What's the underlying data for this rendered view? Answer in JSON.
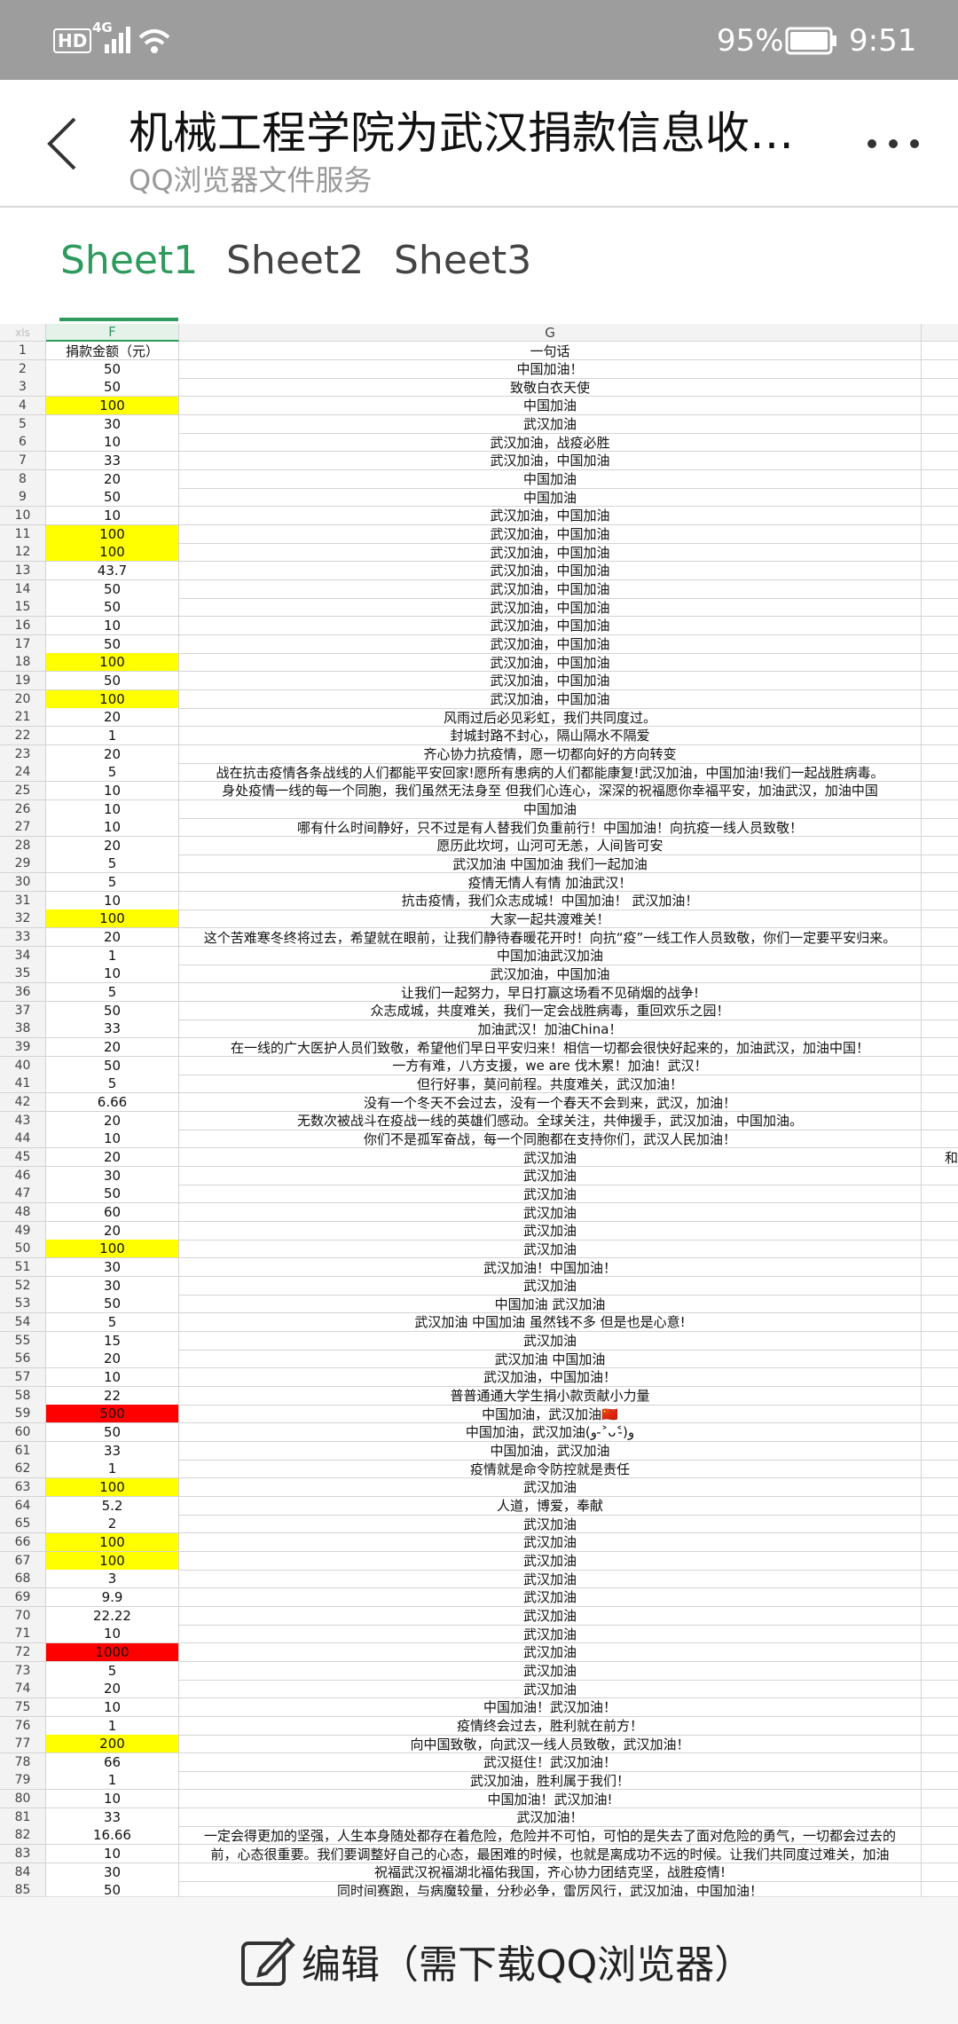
{
  "status_bar": {
    "hd": "HD",
    "network": "4G",
    "battery": "95%",
    "time": "9:51"
  },
  "header": {
    "title": "机械工程学院为武汉捐款信息收…",
    "subtitle": "QQ浏览器文件服务"
  },
  "tabs": [
    "Sheet1",
    "Sheet2",
    "Sheet3"
  ],
  "sheet": {
    "corner": "xls",
    "columns": [
      "F",
      "G"
    ],
    "rows": [
      {
        "n": 1,
        "f": "捐款金额（元）",
        "g": "一句话"
      },
      {
        "n": 2,
        "f": 50,
        "g": "中国加油！"
      },
      {
        "n": 3,
        "f": 50,
        "g": "致敬白衣天使"
      },
      {
        "n": 4,
        "f": 100,
        "g": "中国加油",
        "fill": "#ffff00"
      },
      {
        "n": 5,
        "f": 30,
        "g": "武汉加油"
      },
      {
        "n": 6,
        "f": 10,
        "g": "武汉加油，战疫必胜"
      },
      {
        "n": 7,
        "f": 33,
        "g": "武汉加油，中国加油"
      },
      {
        "n": 8,
        "f": 20,
        "g": "中国加油"
      },
      {
        "n": 9,
        "f": 50,
        "g": "中国加油"
      },
      {
        "n": 10,
        "f": 10,
        "g": "武汉加油，中国加油"
      },
      {
        "n": 11,
        "f": 100,
        "g": "武汉加油，中国加油",
        "fill": "#ffff00"
      },
      {
        "n": 12,
        "f": 100,
        "g": "武汉加油，中国加油",
        "fill": "#ffff00"
      },
      {
        "n": 13,
        "f": 43.7,
        "g": "武汉加油，中国加油"
      },
      {
        "n": 14,
        "f": 50,
        "g": "武汉加油，中国加油"
      },
      {
        "n": 15,
        "f": 50,
        "g": "武汉加油，中国加油"
      },
      {
        "n": 16,
        "f": 10,
        "g": "武汉加油，中国加油"
      },
      {
        "n": 17,
        "f": 50,
        "g": "武汉加油，中国加油"
      },
      {
        "n": 18,
        "f": 100,
        "g": "武汉加油，中国加油",
        "fill": "#ffff00"
      },
      {
        "n": 19,
        "f": 50,
        "g": "武汉加油，中国加油"
      },
      {
        "n": 20,
        "f": 100,
        "g": "武汉加油，中国加油",
        "fill": "#ffff00"
      },
      {
        "n": 21,
        "f": 20,
        "g": "风雨过后必见彩虹，我们共同度过。"
      },
      {
        "n": 22,
        "f": 1,
        "g": "封城封路不封心，隔山隔水不隔爱"
      },
      {
        "n": 23,
        "f": 20,
        "g": "齐心协力抗疫情，愿一切都向好的方向转变"
      },
      {
        "n": 24,
        "f": 5,
        "g": "战在抗击疫情各条战线的人们都能平安回家!愿所有患病的人们都能康复!武汉加油，中国加油!我们一起战胜病毒。"
      },
      {
        "n": 25,
        "f": 10,
        "g": "身处疫情一线的每一个同胞，我们虽然无法身至 但我们心连心，深深的祝福愿你幸福平安，加油武汉，加油中国"
      },
      {
        "n": 26,
        "f": 10,
        "g": "中国加油"
      },
      {
        "n": 27,
        "f": 10,
        "g": "哪有什么时间静好，只不过是有人替我们负重前行！中国加油！向抗疫一线人员致敬！"
      },
      {
        "n": 28,
        "f": 20,
        "g": "愿历此坎坷，山河可无恙，人间皆可安"
      },
      {
        "n": 29,
        "f": 5,
        "g": "武汉加油 中国加油 我们一起加油"
      },
      {
        "n": 30,
        "f": 5,
        "g": "疫情无情人有情 加油武汉！"
      },
      {
        "n": 31,
        "f": 10,
        "g": "抗击疫情，我们众志成城！中国加油！ 武汉加油！"
      },
      {
        "n": 32,
        "f": 100,
        "g": "大家一起共渡难关！",
        "fill": "#ffff00"
      },
      {
        "n": 33,
        "f": 20,
        "g": "这个苦难寒冬终将过去，希望就在眼前，让我们静待春暖花开时！向抗“疫”一线工作人员致敬，你们一定要平安归来。"
      },
      {
        "n": 34,
        "f": 1,
        "g": "中国加油武汉加油"
      },
      {
        "n": 35,
        "f": 10,
        "g": "武汉加油，中国加油"
      },
      {
        "n": 36,
        "f": 5,
        "g": "让我们一起努力，早日打赢这场看不见硝烟的战争!"
      },
      {
        "n": 37,
        "f": 50,
        "g": "众志成城，共度难关，我们一定会战胜病毒，重回欢乐之园！"
      },
      {
        "n": 38,
        "f": 33,
        "g": "加油武汉！加油China！"
      },
      {
        "n": 39,
        "f": 20,
        "g": "在一线的广大医护人员们致敬，希望他们早日平安归来！相信一切都会很快好起来的，加油武汉，加油中国！"
      },
      {
        "n": 40,
        "f": 50,
        "g": "一方有难，八方支援，we are 伐木累！加油！武汉！"
      },
      {
        "n": 41,
        "f": 5,
        "g": "但行好事，莫问前程。共度难关，武汉加油！"
      },
      {
        "n": 42,
        "f": 6.66,
        "g": "没有一个冬天不会过去，没有一个春天不会到来，武汉，加油！"
      },
      {
        "n": 43,
        "f": 20,
        "g": "无数次被战斗在疫战一线的英雄们感动。全球关注，共伸援手，武汉加油，中国加油。"
      },
      {
        "n": 44,
        "f": 10,
        "g": "你们不是孤军奋战，每一个同胞都在支持你们，武汉人民加油！"
      },
      {
        "n": 45,
        "f": 20,
        "g": "武汉加油",
        "h": "和"
      },
      {
        "n": 46,
        "f": 30,
        "g": "武汉加油"
      },
      {
        "n": 47,
        "f": 50,
        "g": "武汉加油"
      },
      {
        "n": 48,
        "f": 60,
        "g": "武汉加油"
      },
      {
        "n": 49,
        "f": 20,
        "g": "武汉加油"
      },
      {
        "n": 50,
        "f": 100,
        "g": "武汉加油",
        "fill": "#ffff00"
      },
      {
        "n": 51,
        "f": 30,
        "g": "武汉加油！中国加油！"
      },
      {
        "n": 52,
        "f": 30,
        "g": "武汉加油"
      },
      {
        "n": 53,
        "f": 50,
        "g": "中国加油 武汉加油"
      },
      {
        "n": 54,
        "f": 5,
        "g": "武汉加油 中国加油 虽然钱不多 但是也是心意!"
      },
      {
        "n": 55,
        "f": 15,
        "g": "武汉加油"
      },
      {
        "n": 56,
        "f": 20,
        "g": "武汉加油 中国加油"
      },
      {
        "n": 57,
        "f": 10,
        "g": "武汉加油，中国加油！"
      },
      {
        "n": 58,
        "f": 22,
        "g": "普普通通大学生捐小款贡献小力量"
      },
      {
        "n": 59,
        "f": 500,
        "g": "中国加油，武汉加油🇨🇳",
        "fill": "#ff0000"
      },
      {
        "n": 60,
        "f": 50,
        "g": "中国加油，武汉加油(و ˃̵ᴗ˂̵)و"
      },
      {
        "n": 61,
        "f": 33,
        "g": "中国加油，武汉加油"
      },
      {
        "n": 62,
        "f": 1,
        "g": "疫情就是命令防控就是责任"
      },
      {
        "n": 63,
        "f": 100,
        "g": "武汉加油",
        "fill": "#ffff00"
      },
      {
        "n": 64,
        "f": 5.2,
        "g": "人道，博爱，奉献"
      },
      {
        "n": 65,
        "f": 2,
        "g": "武汉加油"
      },
      {
        "n": 66,
        "f": 100,
        "g": "武汉加油",
        "fill": "#ffff00"
      },
      {
        "n": 67,
        "f": 100,
        "g": "武汉加油",
        "fill": "#ffff00"
      },
      {
        "n": 68,
        "f": 3,
        "g": "武汉加油"
      },
      {
        "n": 69,
        "f": 9.9,
        "g": "武汉加油"
      },
      {
        "n": 70,
        "f": 22.22,
        "g": "武汉加油"
      },
      {
        "n": 71,
        "f": 10,
        "g": "武汉加油"
      },
      {
        "n": 72,
        "f": 1000,
        "g": "武汉加油",
        "fill": "#ff0000"
      },
      {
        "n": 73,
        "f": 5,
        "g": "武汉加油"
      },
      {
        "n": 74,
        "f": 20,
        "g": "武汉加油"
      },
      {
        "n": 75,
        "f": 10,
        "g": "中国加油！武汉加油！"
      },
      {
        "n": 76,
        "f": 1,
        "g": "疫情终会过去，胜利就在前方！"
      },
      {
        "n": 77,
        "f": 200,
        "g": "向中国致敬，向武汉一线人员致敬，武汉加油！",
        "fill": "#ffff00"
      },
      {
        "n": 78,
        "f": 66,
        "g": "武汉挺住！武汉加油！"
      },
      {
        "n": 79,
        "f": 1,
        "g": "武汉加油，胜利属于我们！"
      },
      {
        "n": 80,
        "f": 10,
        "g": "中国加油！武汉加油!"
      },
      {
        "n": 81,
        "f": 33,
        "g": "武汉加油！"
      },
      {
        "n": 82,
        "f": 16.66,
        "g": "一定会得更加的坚强，人生本身随处都存在着危险，危险并不可怕，可怕的是失去了面对危险的勇气，一切都会过去的"
      },
      {
        "n": 83,
        "f": 10,
        "g": "前，心态很重要。我们要调整好自己的心态，最困难的时候，也就是离成功不远的时候。让我们共同度过难关，加油"
      },
      {
        "n": 84,
        "f": 30,
        "g": "祝福武汉祝福湖北福佑我国，齐心协力团结克坚，战胜疫情!"
      },
      {
        "n": 85,
        "f": 50,
        "g": "同时间赛跑，与病魔较量，分秒必争，雷厉风行，武汉加油，中国加油！"
      }
    ]
  },
  "footer": {
    "edit": "编辑（需下载QQ浏览器）"
  }
}
